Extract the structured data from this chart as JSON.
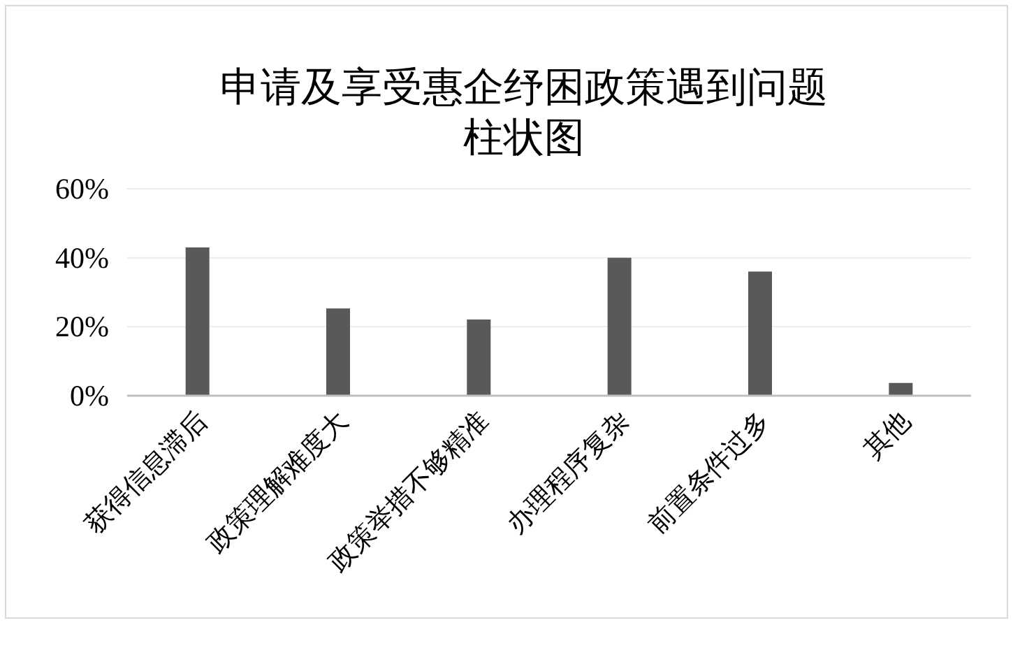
{
  "chart_data": {
    "type": "bar",
    "title": "申请及享受惠企纾困政策遇到问题柱状图",
    "categories": [
      "获得信息滞后",
      "政策理解难度大",
      "政策举措不够精准",
      "办理程序复杂",
      "前置条件过多",
      "其他"
    ],
    "values": [
      43,
      25.3,
      22.1,
      40,
      36,
      3.7
    ],
    "color": "#595959",
    "ylim": [
      0,
      60
    ],
    "yticks": [
      {
        "value": 0,
        "label": "0%"
      },
      {
        "value": 20,
        "label": "20%"
      },
      {
        "value": 40,
        "label": "40%"
      },
      {
        "value": 60,
        "label": "60%"
      }
    ],
    "grid": "y"
  }
}
